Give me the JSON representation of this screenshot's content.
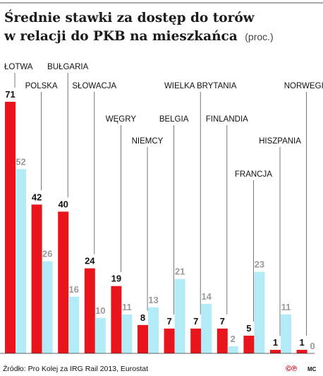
{
  "chart_data": {
    "type": "bar",
    "title_line1": "Średnie stawki za dostęp do torów",
    "title_line2": "w relacji do PKB na mieszkańca",
    "title_unit": "(proc.)",
    "categories": [
      "ŁOTWA",
      "POLSKA",
      "BUŁGARIA",
      "SŁOWACJA",
      "WĘGRY",
      "NIEMCY",
      "BELGIA",
      "WIELKA BRYTANIA",
      "FINLANDIA",
      "FRANCJA",
      "HISZPANIA",
      "NORWEGIA"
    ],
    "series": [
      {
        "values": [
          71,
          42,
          40,
          24,
          19,
          8,
          7,
          7,
          7,
          5,
          1,
          1
        ],
        "color": "#e8151c"
      },
      {
        "values": [
          52,
          26,
          16,
          10,
          11,
          13,
          21,
          14,
          2,
          23,
          11,
          0
        ],
        "color": "#b3ebf7"
      }
    ],
    "ylim": [
      0,
      71
    ],
    "grid": false
  },
  "footer": {
    "source": "Źródło: Pro Kolej za IRG Rail 2013, Eurostat",
    "logo": "©℗",
    "credit": "MC"
  }
}
